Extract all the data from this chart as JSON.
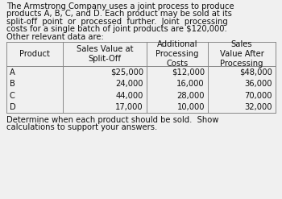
{
  "bg_color": "#f0f0f0",
  "intro_text": "The Armstrong Company uses a joint process to produce\nproducts A, B, C, and D. Each product may be sold at its\nsplit-off  point  or  processed  further.  Joint  processing\ncosts for a single batch of joint products are $120,000.\nOther relevant data are:",
  "col_headers": [
    "Product",
    "Sales Value at\nSplit-Off",
    "Additional\nProcessing\nCosts",
    "Sales\nValue After\nProcessing"
  ],
  "rows": [
    [
      "A",
      "$25,000",
      "$12,000",
      "$48,000"
    ],
    [
      "B",
      "24,000",
      "16,000",
      "36,000"
    ],
    [
      "C",
      "44,000",
      "28,000",
      "70,000"
    ],
    [
      "D",
      "17,000",
      "10,000",
      "32,000"
    ]
  ],
  "footer_text": "Determine when each product should be sold.  Show\ncalculations to support your answers.",
  "font_size": 7.2,
  "table_line_color": "#888888",
  "text_color": "#111111"
}
